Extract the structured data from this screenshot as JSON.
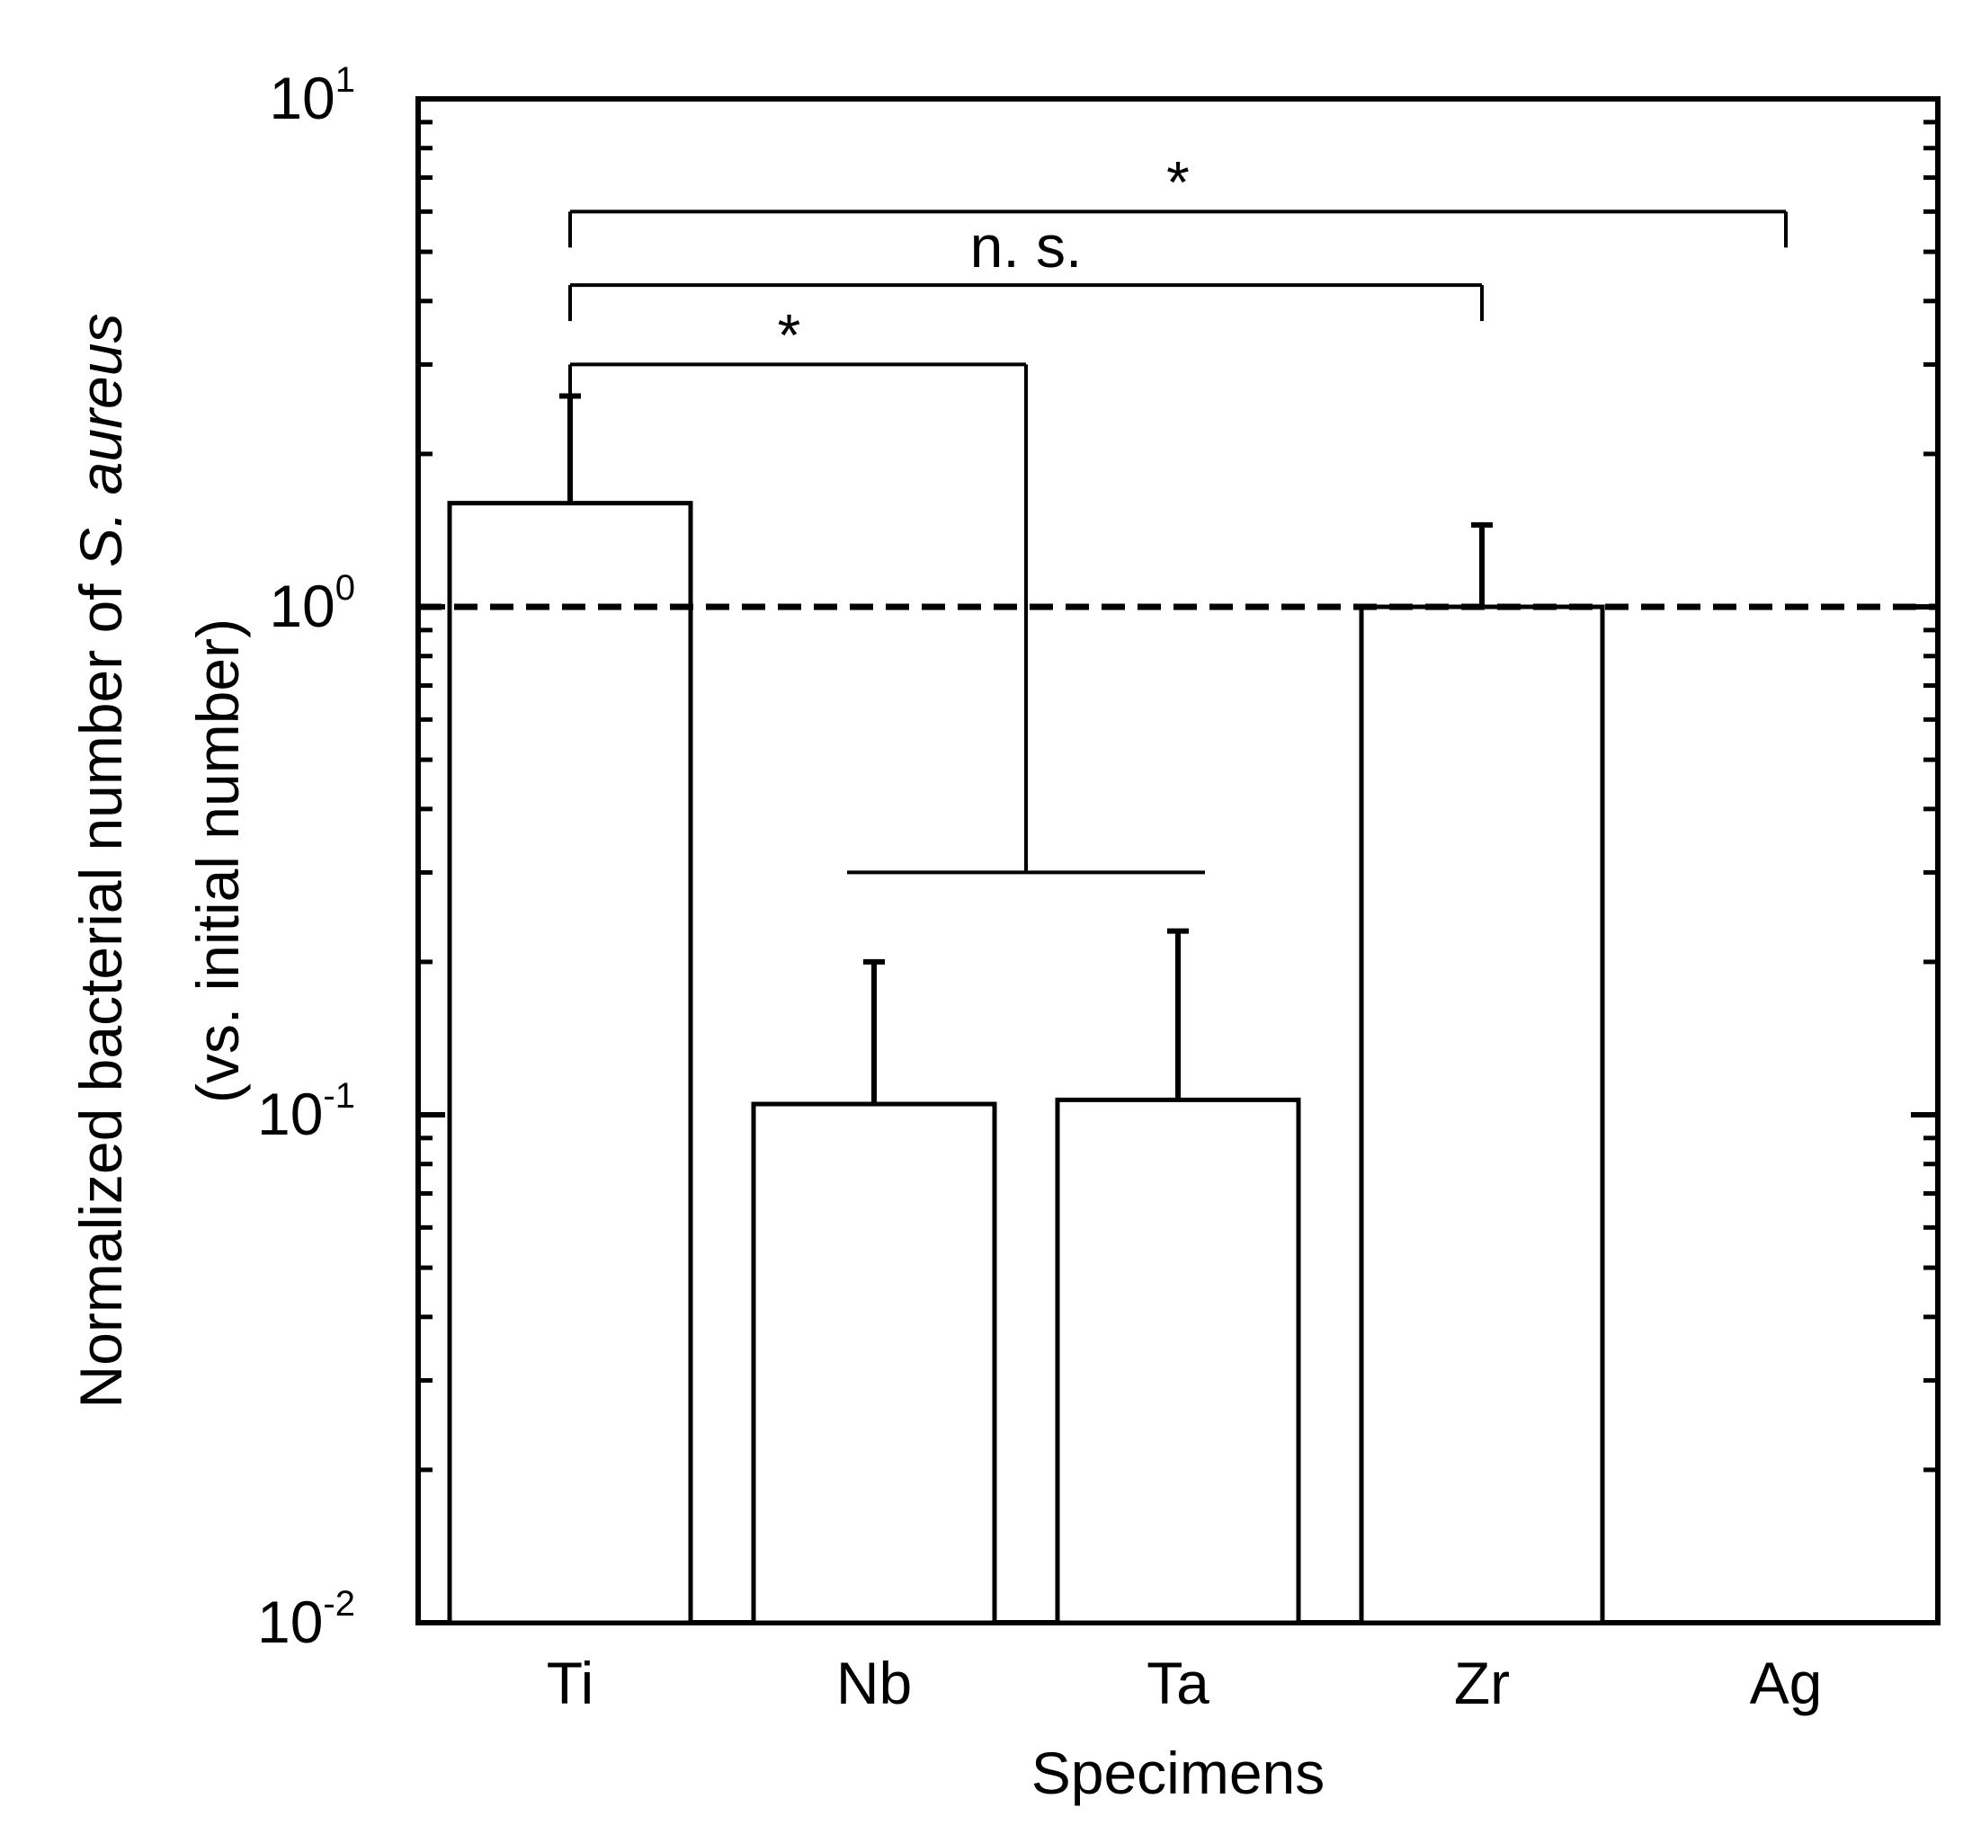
{
  "chart_data": {
    "type": "bar",
    "scale": "log",
    "xlabel": "Specimens",
    "ylabel": {
      "prefix": "Normalized bacterial number of ",
      "species": "S. aureus",
      "line2": "(vs. initial number)"
    },
    "ylim": [
      0.01,
      10
    ],
    "yticks": [
      {
        "value": 0.01,
        "base": "10",
        "exp": "-2"
      },
      {
        "value": 0.1,
        "base": "10",
        "exp": "-1"
      },
      {
        "value": 1,
        "base": "10",
        "exp": "0"
      },
      {
        "value": 10,
        "base": "10",
        "exp": "1"
      }
    ],
    "categories": [
      "Ti",
      "Nb",
      "Ta",
      "Zr",
      "Ag"
    ],
    "values": [
      1.6,
      0.105,
      0.107,
      1.0,
      null
    ],
    "error_upper": [
      2.6,
      0.2,
      0.23,
      1.45,
      null
    ],
    "reference_line": 1.0,
    "significance": [
      {
        "label": "*",
        "from": [
          "Ti"
        ],
        "to": [
          "Ag"
        ],
        "y": 6.0
      },
      {
        "label": "n. s.",
        "from": [
          "Ti"
        ],
        "to": [
          "Zr"
        ],
        "y": 4.3
      },
      {
        "label": "*",
        "from": [
          "Ti"
        ],
        "to": [
          "Nb",
          "Ta"
        ],
        "y": 3.0
      }
    ],
    "grid": false,
    "legend": "none",
    "colors": {
      "bar_fill": "#ffffff",
      "stroke": "#000000"
    }
  }
}
